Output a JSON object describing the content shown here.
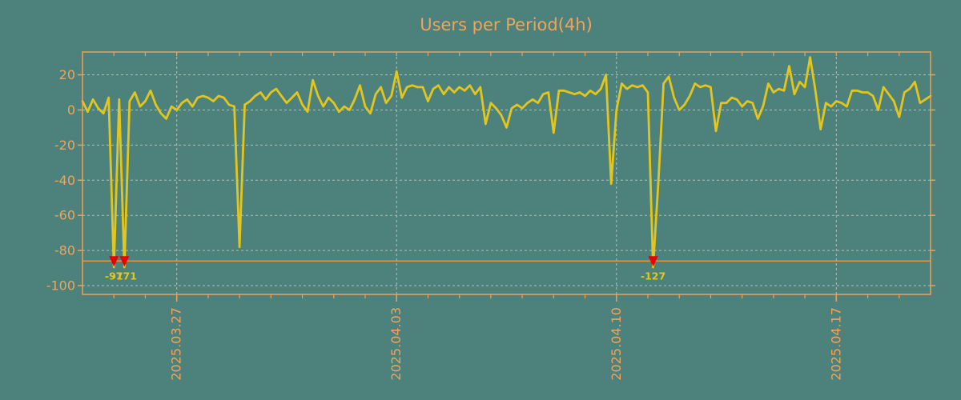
{
  "title": "Users per Period(4h)",
  "colors": {
    "background": "#4d827c",
    "series_line": "#e2c51d",
    "axis_text": "#f2a35a",
    "frame": "#f0a055",
    "grid": "#b6bcb6",
    "threshold_line": "#e8943c",
    "marker": "#ea0000",
    "marker_label": "#e2c51d"
  },
  "chart_data": {
    "type": "line",
    "title": "Users per Period(4h)",
    "xlabel": "",
    "ylabel": "",
    "x_start": "2025-03-24 00:00",
    "x_interval_hours": 4,
    "values": [
      5,
      -1,
      6,
      1,
      -2,
      7,
      -97,
      6,
      -171,
      5,
      10,
      2,
      5,
      11,
      3,
      -2,
      -5,
      2,
      0,
      4,
      6,
      2,
      7,
      8,
      7,
      5,
      8,
      7,
      3,
      2,
      -78,
      3,
      5,
      8,
      10,
      6,
      10,
      12,
      8,
      4,
      7,
      10,
      3,
      -1,
      17,
      8,
      2,
      7,
      4,
      -1,
      2,
      0,
      6,
      14,
      2,
      -2,
      9,
      13,
      4,
      8,
      22,
      7,
      13,
      14,
      13,
      13,
      5,
      12,
      14,
      9,
      13,
      10,
      13,
      11,
      14,
      9,
      13,
      -8,
      4,
      1,
      -3,
      -10,
      1,
      3,
      1,
      4,
      6,
      4,
      9,
      10,
      -13,
      11,
      11,
      10,
      9,
      10,
      8,
      11,
      9,
      12,
      20,
      -42,
      0,
      15,
      12,
      14,
      13,
      14,
      10,
      -127,
      -41,
      15,
      19,
      7,
      0,
      3,
      8,
      15,
      13,
      14,
      13,
      -12,
      4,
      4,
      7,
      6,
      2,
      5,
      4,
      -5,
      2,
      15,
      10,
      12,
      11,
      25,
      9,
      16,
      13,
      30,
      11,
      -11,
      4,
      2,
      5,
      4,
      2,
      11,
      11,
      10,
      10,
      8,
      0,
      13,
      9,
      5,
      -4,
      10,
      12,
      16,
      4,
      6,
      8
    ],
    "y_ticks": [
      20,
      0,
      -20,
      -40,
      -60,
      -80,
      -100
    ],
    "ylim": [
      -105,
      33
    ],
    "x_tick_labels": [
      {
        "label": "2025.03.27",
        "index": 18
      },
      {
        "label": "2025.04.03",
        "index": 60
      },
      {
        "label": "2025.04.10",
        "index": 102
      },
      {
        "label": "2025.04.17",
        "index": 144
      }
    ],
    "minor_tick_every": 6,
    "grid": true,
    "legend": "none",
    "clip_line_value": -86,
    "markers": [
      {
        "index": 6,
        "value": -97,
        "label": "-97"
      },
      {
        "index": 8,
        "value": -171,
        "label": "-171"
      },
      {
        "index": 109,
        "value": -127,
        "label": "-127"
      }
    ]
  }
}
